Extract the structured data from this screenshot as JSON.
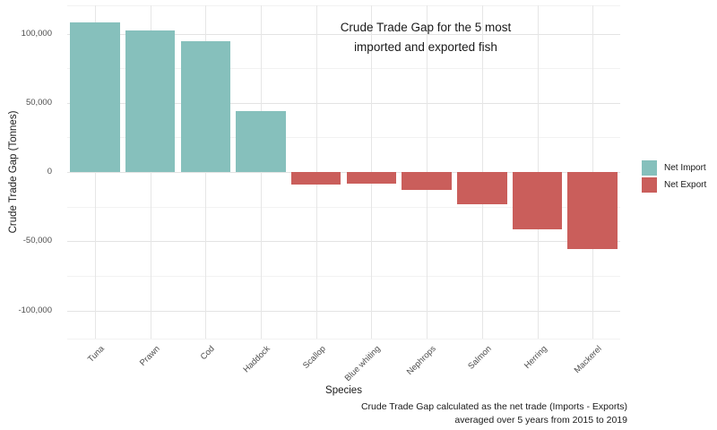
{
  "figure": {
    "title_line1": "Crude Trade Gap for the 5 most",
    "title_line2": "imported and exported fish",
    "xlabel": "Species",
    "ylabel": "Crude Trade Gap (Tonnes)",
    "caption_line1": "Crude Trade Gap calculated as the net trade (Imports - Exports)",
    "caption_line2": "averaged over 5 years from 2015 to 2019",
    "legend": [
      {
        "label": "Net Import",
        "color": "#86C0BC"
      },
      {
        "label": "Net Export",
        "color": "#CA5E5B"
      }
    ]
  },
  "chart_data": {
    "type": "bar",
    "title": "Crude Trade Gap for the 5 most imported and exported fish",
    "xlabel": "Species",
    "ylabel": "Crude Trade Gap (Tonnes)",
    "caption": "Crude Trade Gap calculated as the net trade (Imports - Exports) averaged over 5 years from 2015 to 2019",
    "categories": [
      "Tuna",
      "Prawn",
      "Cod",
      "Haddock",
      "Scallop",
      "Blue whiting",
      "Nephrops",
      "Salmon",
      "Herring",
      "Mackerel"
    ],
    "values": [
      108000,
      102000,
      94500,
      44000,
      -8800,
      -8200,
      -12700,
      -23500,
      -41200,
      -55800
    ],
    "series": [
      {
        "name": "Net Import",
        "color": "#86C0BC",
        "applies_to": "positive values"
      },
      {
        "name": "Net Export",
        "color": "#CA5E5B",
        "applies_to": "negative values"
      }
    ],
    "y_ticks": [
      {
        "value": 100000,
        "label": "100,000"
      },
      {
        "value": 50000,
        "label": "50,000"
      },
      {
        "value": 0,
        "label": "0"
      },
      {
        "value": -50000,
        "label": "-50,000"
      },
      {
        "value": -100000,
        "label": "-100,000"
      }
    ],
    "y_minor_ticks": [
      75000,
      25000,
      -25000,
      -75000
    ],
    "ylim": [
      -120000,
      120000
    ],
    "grid": "major and minor horizontal, major vertical at category centers",
    "legend_position": "right",
    "bar_colors": {
      "positive": "#86C0BC",
      "negative": "#CA5E5B"
    }
  },
  "theme": {
    "background": "#FFFFFF",
    "grid_major": "#E3E3E3",
    "grid_minor": "#F2F2F2",
    "text_dark": "#1A1A1A",
    "text_gray": "#4D4D4D"
  }
}
